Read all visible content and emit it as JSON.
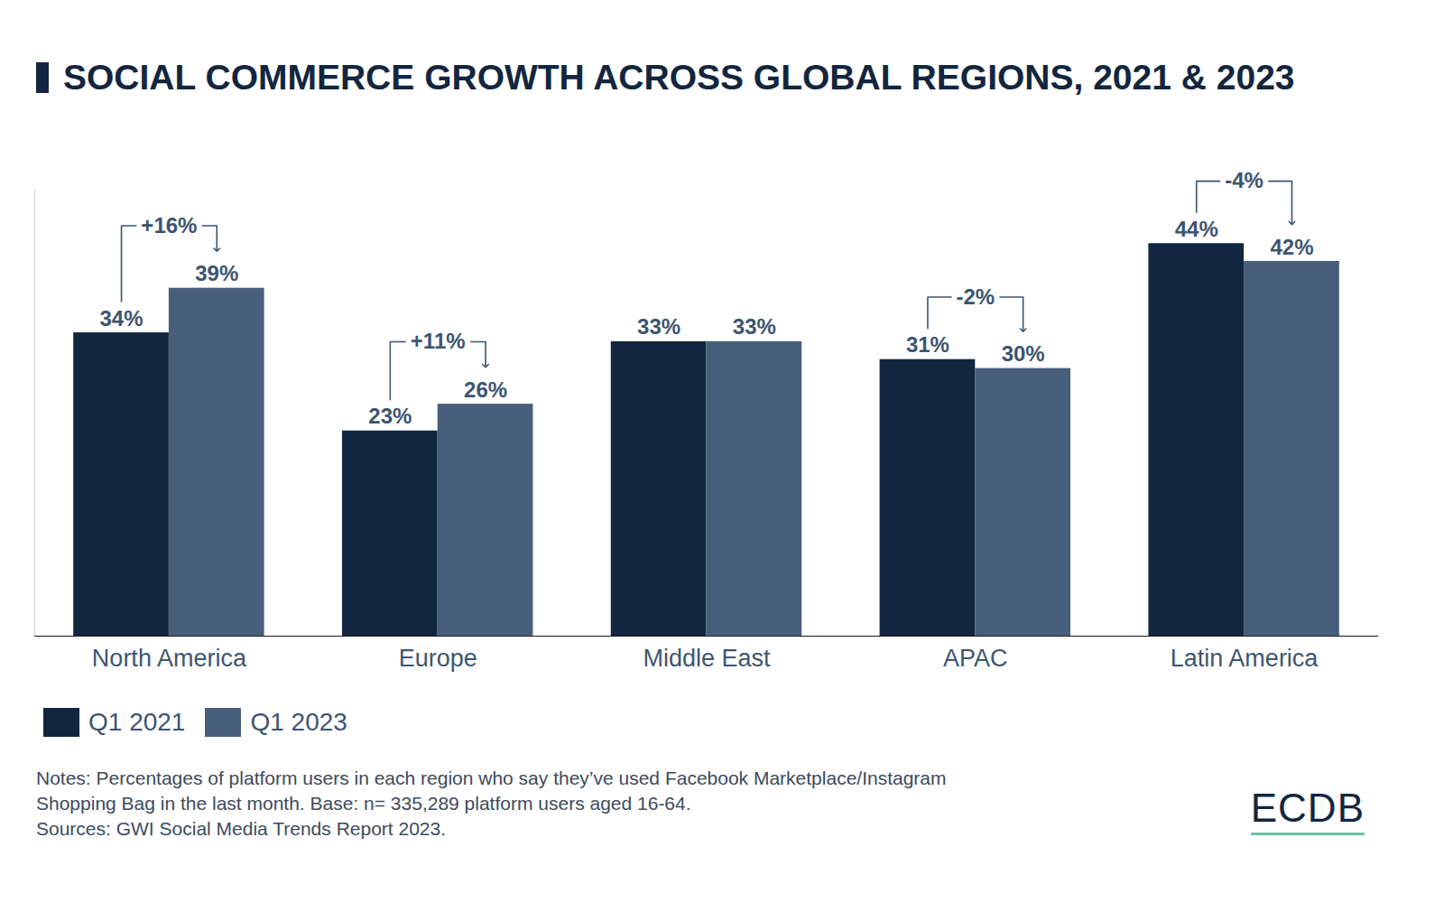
{
  "chart_data": {
    "type": "bar",
    "title": "SOCIAL COMMERCE GROWTH ACROSS GLOBAL REGIONS, 2021 & 2023",
    "categories": [
      "North America",
      "Europe",
      "Middle East",
      "APAC",
      "Latin America"
    ],
    "series": [
      {
        "name": "Q1 2021",
        "color": "#13263f",
        "values": [
          34,
          23,
          33,
          31,
          44
        ],
        "value_labels": [
          "34%",
          "23%",
          "33%",
          "31%",
          "44%"
        ]
      },
      {
        "name": "Q1 2023",
        "color": "#475f7b",
        "values": [
          39,
          26,
          33,
          30,
          42
        ],
        "value_labels": [
          "39%",
          "26%",
          "33%",
          "30%",
          "42%"
        ]
      }
    ],
    "annotations": [
      {
        "category": "North America",
        "text": "+16%"
      },
      {
        "category": "Europe",
        "text": "+11%"
      },
      {
        "category": "APAC",
        "text": "-2%"
      },
      {
        "category": "Latin America",
        "text": "-4%"
      }
    ],
    "ylim": [
      0,
      50
    ],
    "yticks": [],
    "grid": false,
    "data_labels": true,
    "tick_labels": "x",
    "legend": "bottom left",
    "caption": [
      "Notes: Percentages of platform users in each region who say they’ve used Facebook Marketplace/Instagram",
      "Shopping Bag in the last month. Base: n= 335,289 platform users aged 16-64.",
      "Sources: GWI Social Media Trends Report 2023."
    ],
    "logo": "ECDB"
  }
}
